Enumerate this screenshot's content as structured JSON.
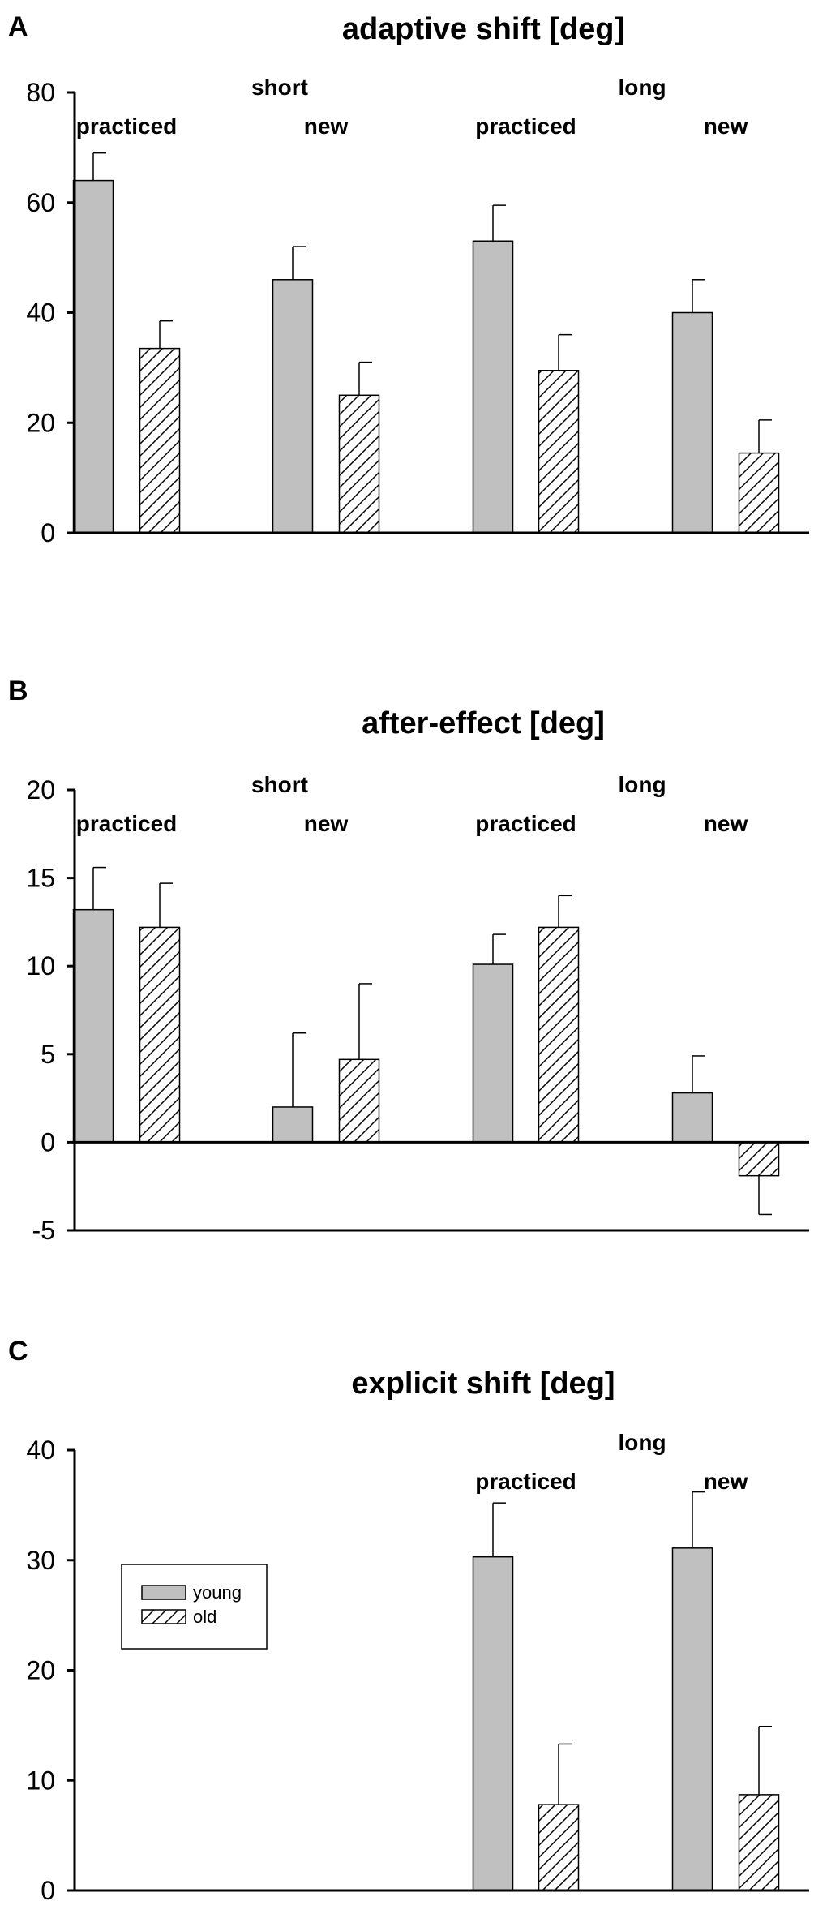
{
  "chart_data": [
    {
      "panel": "A",
      "type": "bar",
      "title": "adaptive shift [deg]",
      "ylim": [
        0,
        80
      ],
      "yticks": [
        0,
        20,
        40,
        60,
        80
      ],
      "groups": [
        "short",
        "long"
      ],
      "subgroups": [
        "practiced",
        "new",
        "practiced",
        "new"
      ],
      "series": [
        {
          "name": "young",
          "values": [
            64,
            46,
            53,
            40
          ],
          "errors": [
            5,
            6,
            6.5,
            6
          ]
        },
        {
          "name": "old",
          "values": [
            33.5,
            25,
            29.5,
            14.5
          ],
          "errors": [
            5,
            6,
            6.5,
            6
          ]
        }
      ]
    },
    {
      "panel": "B",
      "type": "bar",
      "title": "after-effect [deg]",
      "ylim": [
        -5,
        20
      ],
      "yticks": [
        -5,
        0,
        5,
        10,
        15,
        20
      ],
      "groups": [
        "short",
        "long"
      ],
      "subgroups": [
        "practiced",
        "new",
        "practiced",
        "new"
      ],
      "series": [
        {
          "name": "young",
          "values": [
            13.2,
            2,
            10.1,
            2.8
          ],
          "errors": [
            2.4,
            4.2,
            1.7,
            2.1
          ]
        },
        {
          "name": "old",
          "values": [
            12.2,
            4.7,
            12.2,
            -1.9
          ],
          "errors": [
            2.5,
            4.3,
            1.8,
            2.2
          ]
        }
      ]
    },
    {
      "panel": "C",
      "type": "bar",
      "title": "explicit shift [deg]",
      "ylim": [
        0,
        40
      ],
      "yticks": [
        0,
        10,
        20,
        30,
        40
      ],
      "groups": [
        "",
        "long"
      ],
      "subgroups": [
        "",
        "",
        "practiced",
        "new"
      ],
      "legend": [
        "young",
        "old"
      ],
      "series": [
        {
          "name": "young",
          "values": [
            null,
            null,
            30.3,
            31.1
          ],
          "errors": [
            null,
            null,
            4.9,
            5.1
          ]
        },
        {
          "name": "old",
          "values": [
            null,
            null,
            7.8,
            8.7
          ],
          "errors": [
            null,
            null,
            5.5,
            6.2
          ]
        }
      ]
    }
  ]
}
